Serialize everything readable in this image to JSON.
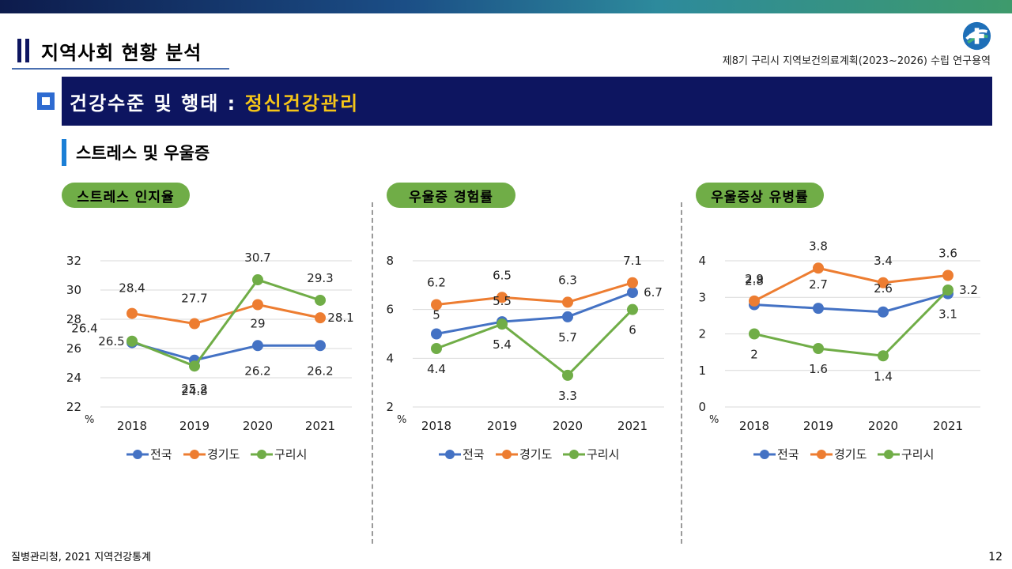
{
  "header": {
    "section_title": "지역사회 현황 분석",
    "project_title": "제8기 구리시 지역보건의료계획(2023~2026) 수립 연구용역"
  },
  "banner": {
    "prefix": "건강수준 및 행태 : ",
    "highlight": "정신건강관리"
  },
  "subsection": "스트레스 및 우울증",
  "footer": {
    "source": "질병관리청, 2021 지역건강통계",
    "page": "12"
  },
  "colors": {
    "navy": "#0d1560",
    "pill": "#70ad47",
    "national": "#4472c4",
    "gyeonggi": "#ed7d31",
    "guri": "#70ad47"
  },
  "chart_data": [
    {
      "type": "line",
      "title": "스트레스 인지율",
      "unit": "%",
      "categories": [
        "2018",
        "2019",
        "2020",
        "2021"
      ],
      "ylim": [
        22,
        32
      ],
      "yticks": [
        22,
        24,
        26,
        28,
        30,
        32
      ],
      "grid": true,
      "legend": "bottom",
      "series": [
        {
          "name": "전국",
          "values": [
            26.4,
            25.2,
            26.2,
            26.2
          ],
          "color": "#4472c4",
          "labels": [
            "26.4",
            "25.2",
            "26.2",
            "26.2"
          ]
        },
        {
          "name": "경기도",
          "values": [
            28.4,
            27.7,
            29,
            28.1
          ],
          "color": "#ed7d31",
          "labels": [
            "28.4",
            "27.7",
            "29",
            "28.1"
          ]
        },
        {
          "name": "구리시",
          "values": [
            26.5,
            24.8,
            30.7,
            29.3
          ],
          "color": "#70ad47",
          "labels": [
            "26.5",
            "24.8",
            "30.7",
            "29.3"
          ]
        }
      ]
    },
    {
      "type": "line",
      "title": "우울증 경험률",
      "unit": "%",
      "categories": [
        "2018",
        "2019",
        "2020",
        "2021"
      ],
      "ylim": [
        2,
        8
      ],
      "yticks": [
        2,
        4,
        6,
        8
      ],
      "grid": true,
      "legend": "bottom",
      "series": [
        {
          "name": "전국",
          "values": [
            5,
            5.5,
            5.7,
            6.7
          ],
          "color": "#4472c4",
          "labels": [
            "5",
            "5.5",
            "5.7",
            "6.7"
          ]
        },
        {
          "name": "경기도",
          "values": [
            6.2,
            6.5,
            6.3,
            7.1
          ],
          "color": "#ed7d31",
          "labels": [
            "6.2",
            "6.5",
            "6.3",
            "7.1"
          ]
        },
        {
          "name": "구리시",
          "values": [
            4.4,
            5.4,
            3.3,
            6
          ],
          "color": "#70ad47",
          "labels": [
            "4.4",
            "5.4",
            "3.3",
            "6"
          ]
        }
      ]
    },
    {
      "type": "line",
      "title": "우울증상 유병률",
      "unit": "%",
      "categories": [
        "2018",
        "2019",
        "2020",
        "2021"
      ],
      "ylim": [
        0,
        4
      ],
      "yticks": [
        0,
        1,
        2,
        3,
        4
      ],
      "grid": true,
      "legend": "bottom",
      "series": [
        {
          "name": "전국",
          "values": [
            2.8,
            2.7,
            2.6,
            3.1
          ],
          "color": "#4472c4",
          "labels": [
            "2.8",
            "2.7",
            "2.6",
            "3.1"
          ]
        },
        {
          "name": "경기도",
          "values": [
            2.9,
            3.8,
            3.4,
            3.6
          ],
          "color": "#ed7d31",
          "labels": [
            "2.9",
            "3.8",
            "3.4",
            "3.6"
          ]
        },
        {
          "name": "구리시",
          "values": [
            2,
            1.6,
            1.4,
            3.2
          ],
          "color": "#70ad47",
          "labels": [
            "2",
            "1.6",
            "1.4",
            "3.2"
          ]
        }
      ]
    }
  ]
}
